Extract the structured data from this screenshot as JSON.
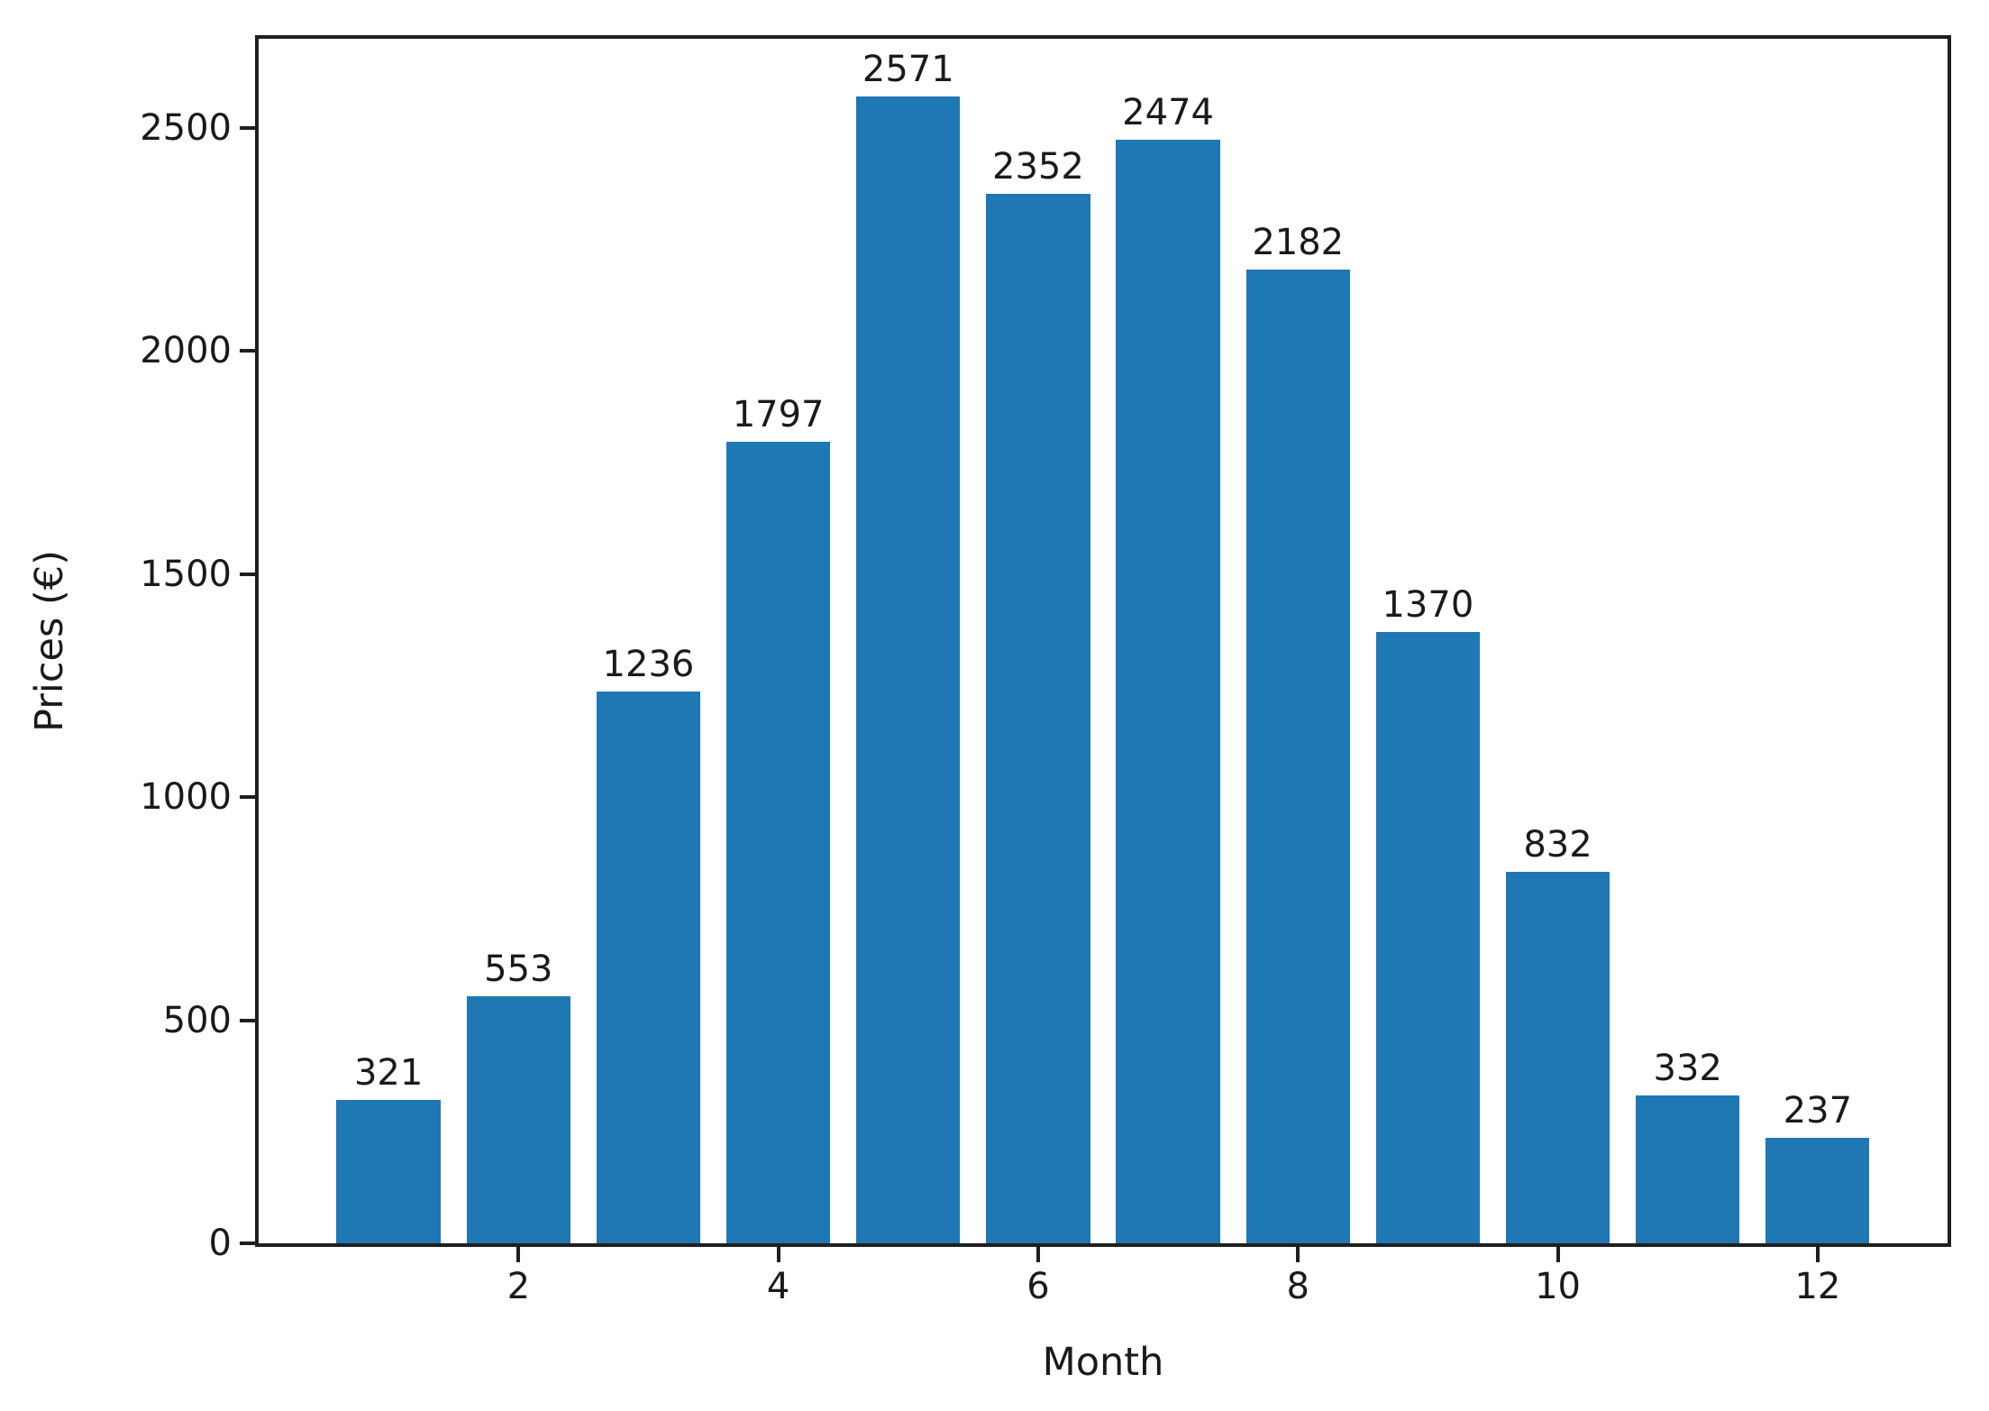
{
  "figure": {
    "background": "#ffffff"
  },
  "chart_data": {
    "type": "bar",
    "title": "",
    "xlabel": "Month",
    "ylabel": "Prices (€)",
    "categories": [
      1,
      2,
      3,
      4,
      5,
      6,
      7,
      8,
      9,
      10,
      11,
      12
    ],
    "values": [
      321,
      553,
      1236,
      1797,
      2571,
      2352,
      2474,
      2182,
      1370,
      832,
      332,
      237
    ],
    "bar_labels": [
      "321",
      "553",
      "1236",
      "1797",
      "2571",
      "2352",
      "2474",
      "2182",
      "1370",
      "832",
      "332",
      "237"
    ],
    "xticks": [
      2,
      4,
      6,
      8,
      10,
      12
    ],
    "yticks": [
      0,
      500,
      1000,
      1500,
      2000,
      2500
    ],
    "xlim": [
      0,
      13
    ],
    "ylim": [
      0,
      2700
    ],
    "bar_width_fraction": 0.8,
    "bar_color": "#1f77b4",
    "axis_color": "#1f1f1f",
    "text_color": "#1a1a1a",
    "grid": false,
    "legend": null
  }
}
